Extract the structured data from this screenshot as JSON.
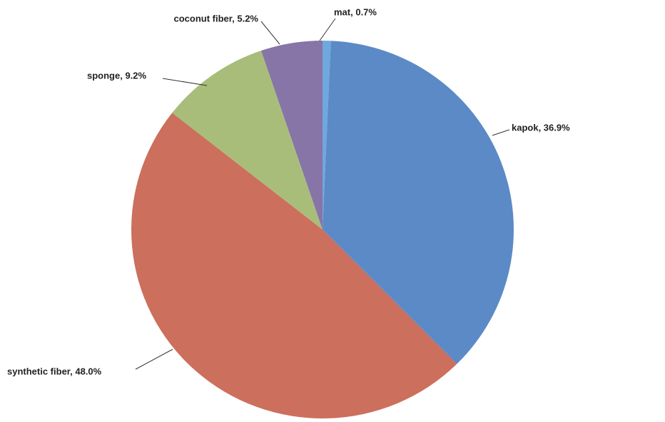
{
  "chart_data": {
    "type": "pie",
    "values": [
      0.7,
      36.9,
      48.0,
      9.2,
      5.2
    ],
    "value_labels": [
      "mat, 0.7%",
      "kapok, 36.9%",
      "synthetic fiber, 48.0%",
      "sponge, 9.2%",
      "coconut fiber, 5.2%"
    ],
    "colors": [
      "#6fa8dc",
      "#5b8ac6",
      "#cc6f5c",
      "#a9bd7a",
      "#8775a8"
    ]
  }
}
